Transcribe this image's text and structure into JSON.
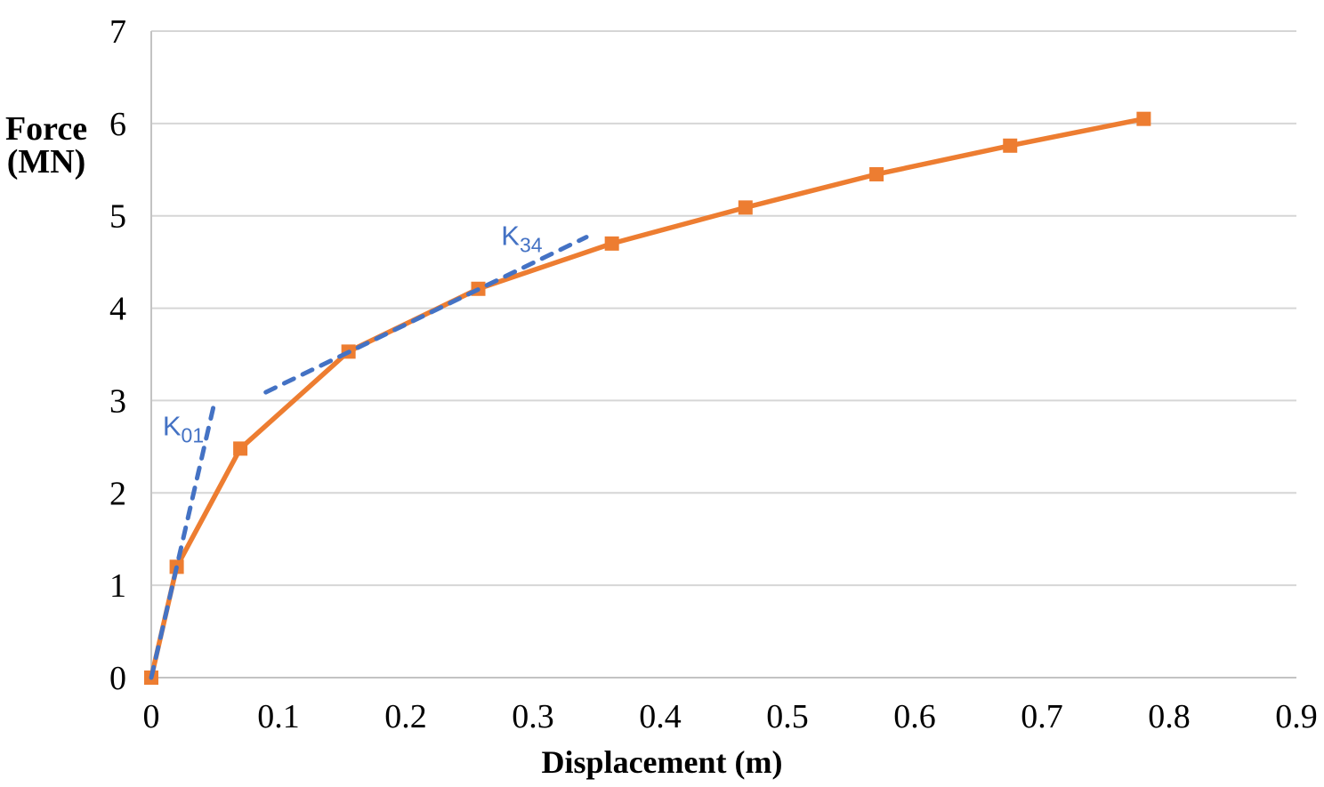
{
  "chart_data": {
    "type": "line",
    "title": "",
    "xlabel": "Displacement (m)",
    "ylabel_lines": [
      "Force",
      "(MN)"
    ],
    "xlim": [
      0,
      0.9
    ],
    "ylim": [
      0,
      7
    ],
    "grid": "horizontal",
    "legend": "none",
    "xticks": {
      "values": [
        0,
        0.1,
        0.2,
        0.3,
        0.4,
        0.5,
        0.6,
        0.7,
        0.8,
        0.9
      ],
      "labels": [
        "0",
        "0.1",
        "0.2",
        "0.3",
        "0.4",
        "0.5",
        "0.6",
        "0.7",
        "0.8",
        "0.9"
      ]
    },
    "yticks": {
      "values": [
        0,
        1,
        2,
        3,
        4,
        5,
        6,
        7
      ],
      "labels": [
        "0",
        "1",
        "2",
        "3",
        "4",
        "5",
        "6",
        "7"
      ]
    },
    "colors": {
      "curve": "#ED7D31",
      "stiffness": "#4472C4",
      "grid": "#D6D6D6",
      "axis": "#C3C3C3",
      "text": "#000000"
    },
    "series": [
      {
        "name": "force-displacement-curve",
        "color": "#ED7D31",
        "style": "solid",
        "marker": "square",
        "points": [
          [
            0,
            0
          ],
          [
            0.02,
            1.2
          ],
          [
            0.07,
            2.48
          ],
          [
            0.155,
            3.53
          ],
          [
            0.257,
            4.21
          ],
          [
            0.362,
            4.7
          ],
          [
            0.467,
            5.09
          ],
          [
            0.57,
            5.45
          ],
          [
            0.675,
            5.76
          ],
          [
            0.78,
            6.05
          ]
        ]
      },
      {
        "name": "k01-stiffness-line",
        "color": "#4472C4",
        "style": "dashed",
        "marker": "none",
        "points": [
          [
            0,
            0
          ],
          [
            0.05,
            3.0
          ]
        ]
      },
      {
        "name": "k34-stiffness-line",
        "color": "#4472C4",
        "style": "dashed",
        "marker": "none",
        "points": [
          [
            0.09,
            3.09
          ],
          [
            0.342,
            4.77
          ]
        ]
      }
    ],
    "annotations": [
      {
        "id": "k01-label",
        "main": "K",
        "sub": "01",
        "x": 0.009,
        "y": 2.73,
        "color": "#4472C4"
      },
      {
        "id": "k34-label",
        "main": "K",
        "sub": "34",
        "x": 0.275,
        "y": 4.79,
        "color": "#4472C4"
      }
    ]
  }
}
